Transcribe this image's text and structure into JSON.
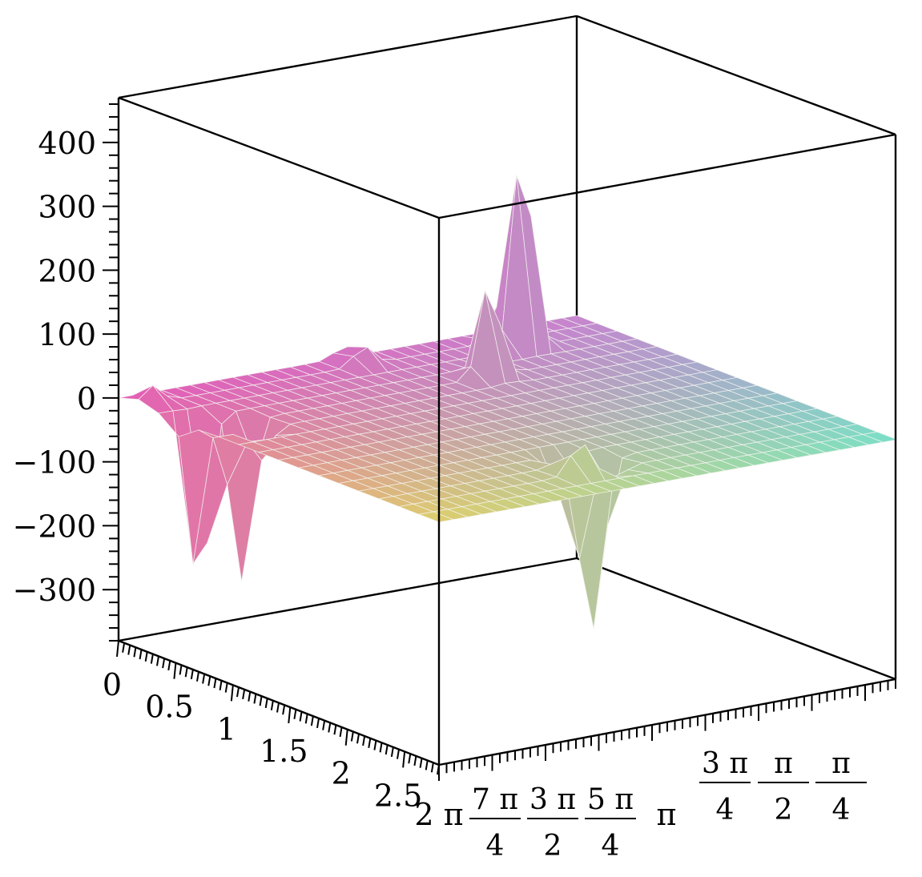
{
  "chart_data": {
    "type": "surface3d",
    "z_axis": {
      "ticks": [
        "400",
        "300",
        "200",
        "100",
        "0",
        "−100",
        "−200",
        "−300"
      ],
      "tick_values": [
        400,
        300,
        200,
        100,
        0,
        -100,
        -200,
        -300
      ],
      "range": [
        -380,
        470
      ]
    },
    "x_axis": {
      "ticks": [
        "0",
        "0.5",
        "1",
        "1.5",
        "2",
        "2.5"
      ],
      "tick_values": [
        0,
        0.5,
        1,
        1.5,
        2,
        2.5
      ],
      "range": [
        0,
        2.8
      ]
    },
    "y_axis": {
      "tick_labels": [
        {
          "num": "2 π",
          "den": ""
        },
        {
          "num": "7 π",
          "den": "4"
        },
        {
          "num": "3 π",
          "den": "2"
        },
        {
          "num": "5 π",
          "den": "4"
        },
        {
          "num": "π",
          "den": ""
        },
        {
          "num": "3 π",
          "den": "4"
        },
        {
          "num": "π",
          "den": "2"
        },
        {
          "num": "π",
          "den": "4"
        }
      ],
      "tick_values": [
        6.2832,
        5.4978,
        4.7124,
        3.927,
        3.1416,
        2.3562,
        1.5708,
        0.7854
      ],
      "range": [
        0,
        6.2832
      ]
    },
    "grid": false,
    "surface": {
      "description": "mostly flat surface near z=0 with isolated spikes",
      "spikes": [
        {
          "x": 0.55,
          "y": 6.0,
          "z": -310
        },
        {
          "x": 0.75,
          "y": 5.7,
          "z": -340
        },
        {
          "x": 2.2,
          "y": 3.5,
          "z": -230
        },
        {
          "x": 2.3,
          "y": 3.3,
          "z": -240
        },
        {
          "x": 2.4,
          "y": 3.8,
          "z": 70
        },
        {
          "x": 0.3,
          "y": 1.3,
          "z": 440
        },
        {
          "x": 0.7,
          "y": 2.3,
          "z": 150
        },
        {
          "x": 0.1,
          "y": 3.2,
          "z": 60
        },
        {
          "x": 0.2,
          "y": 6.1,
          "z": 30
        }
      ],
      "colors": [
        "#e35fb4",
        "#c488cf",
        "#dcd36c",
        "#9ed8a4",
        "#76e3c8"
      ]
    }
  }
}
